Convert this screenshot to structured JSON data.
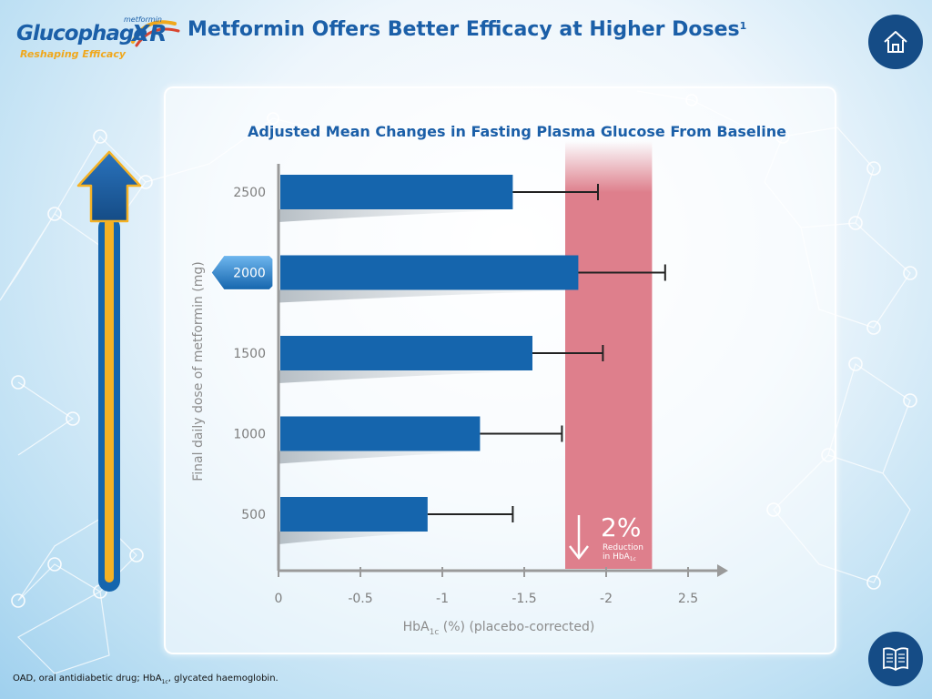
{
  "logo": {
    "brand": "Glucophage",
    "suffix": "XR",
    "small_text": "metformin",
    "tagline": "Reshaping Efficacy"
  },
  "header": {
    "title": "Metformin Offers Better Efficacy at Higher Doses",
    "title_ref": "1"
  },
  "buttons": {
    "home_icon": "home-icon",
    "book_icon": "book-icon"
  },
  "footnote": {
    "text_a": "OAD, oral antidiabetic drug; HbA",
    "text_sub": "1c",
    "text_b": ", glycated haemoglobin."
  },
  "colors": {
    "bar": "#1565ad",
    "band": "#de7f8c",
    "title": "#1b5fa8",
    "arrow_yellow": "#f5b225"
  },
  "chart_data": {
    "type": "bar",
    "orientation": "horizontal",
    "title": "Adjusted Mean Changes in Fasting Plasma Glucose From Baseline",
    "ylabel": "Final daily dose of metformin (mg)",
    "xlabel_a": "HbA",
    "xlabel_sub": "1c",
    "xlabel_b": " (%) (placebo-corrected)",
    "categories": [
      "2500",
      "2000",
      "1500",
      "1000",
      "500"
    ],
    "highlighted_category": "2000",
    "values": [
      -1.43,
      -1.83,
      -1.55,
      -1.23,
      -0.91
    ],
    "error_upper": [
      -1.95,
      -2.36,
      -1.98,
      -1.73,
      -1.43
    ],
    "x_ticks": [
      "0",
      "-0.5",
      "-1",
      "-1.5",
      "-2",
      "2.5"
    ],
    "xlim": [
      0,
      -2.7
    ],
    "band": {
      "from": -1.75,
      "to": -2.28,
      "big_label": "2%",
      "label_line1": "Reduction",
      "label_line2a": "in HbA",
      "label_line2_sub": "1c"
    },
    "grid": false,
    "legend": "none"
  }
}
